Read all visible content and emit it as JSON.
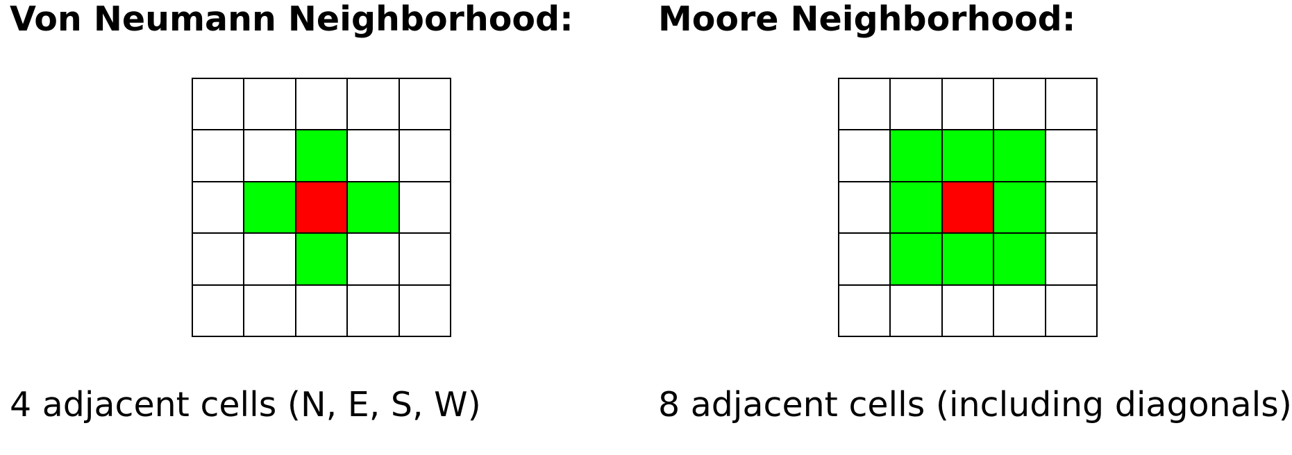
{
  "colors": {
    "center": "#ff0000",
    "neighbor": "#00ff00",
    "empty": "#ffffff",
    "gridline": "#000000"
  },
  "panels": [
    {
      "title": "Von Neumann Neighborhood:",
      "caption": "4 adjacent cells (N, E, S, W)",
      "grid": [
        [
          "empty",
          "empty",
          "empty",
          "empty",
          "empty"
        ],
        [
          "empty",
          "empty",
          "neighbor",
          "empty",
          "empty"
        ],
        [
          "empty",
          "neighbor",
          "center",
          "neighbor",
          "empty"
        ],
        [
          "empty",
          "empty",
          "neighbor",
          "empty",
          "empty"
        ],
        [
          "empty",
          "empty",
          "empty",
          "empty",
          "empty"
        ]
      ]
    },
    {
      "title": "Moore Neighborhood:",
      "caption": "8 adjacent cells (including diagonals)",
      "grid": [
        [
          "empty",
          "empty",
          "empty",
          "empty",
          "empty"
        ],
        [
          "empty",
          "neighbor",
          "neighbor",
          "neighbor",
          "empty"
        ],
        [
          "empty",
          "neighbor",
          "center",
          "neighbor",
          "empty"
        ],
        [
          "empty",
          "neighbor",
          "neighbor",
          "neighbor",
          "empty"
        ],
        [
          "empty",
          "empty",
          "empty",
          "empty",
          "empty"
        ]
      ]
    }
  ]
}
